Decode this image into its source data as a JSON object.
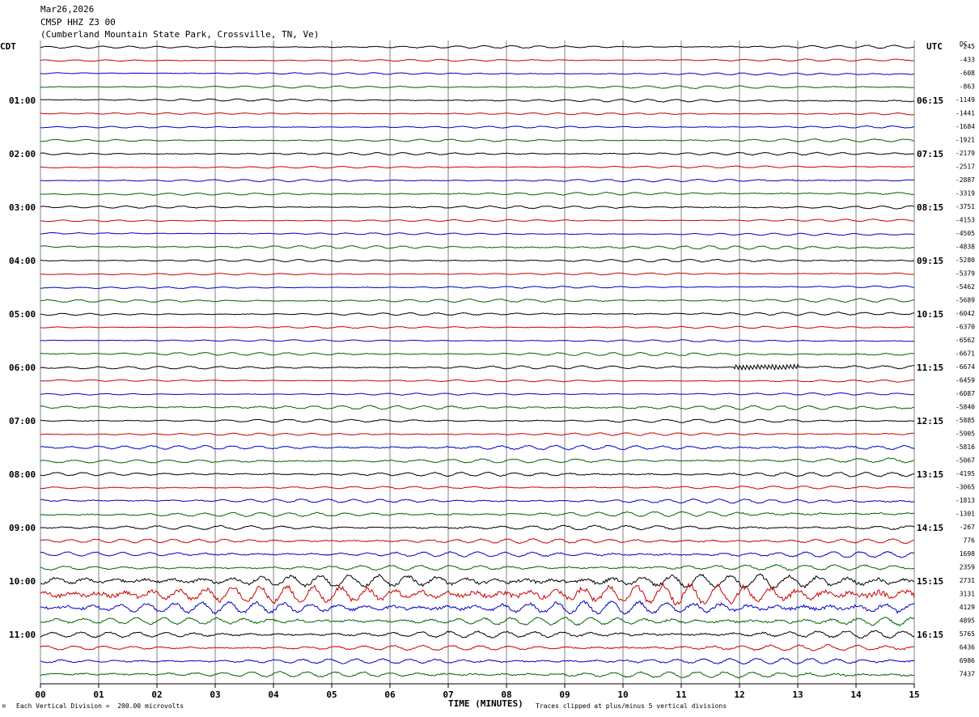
{
  "header": {
    "date": "Mar26,2026",
    "station": "CMSP HHZ Z3 00",
    "location": "(Cumberland Mountain State Park, Crossville, TN, Ve)"
  },
  "left_tz": "CDT",
  "right_tz": "UTC",
  "dc_label": "DC",
  "footer": {
    "division_note": "Each Vertical Division =  200.00 microvolts",
    "clip_note": "Traces clipped at plus/minus 5 vertical divisions",
    "corner_mark": "M"
  },
  "colors": {
    "trace_cycle": [
      "#000000",
      "#cc0000",
      "#0000cc",
      "#006600"
    ],
    "grid": "#808080"
  },
  "chart_data": {
    "type": "line",
    "title": "CMSP HHZ Z3 00",
    "xlabel": "TIME (MINUTES)",
    "ylabel": "",
    "x_range": [
      0,
      15
    ],
    "x_ticks": [
      "00",
      "01",
      "02",
      "03",
      "04",
      "05",
      "06",
      "07",
      "08",
      "09",
      "10",
      "11",
      "12",
      "13",
      "14",
      "15"
    ],
    "left_hour_labels": [
      "01:00",
      "02:00",
      "03:00",
      "04:00",
      "05:00",
      "06:00",
      "07:00",
      "08:00",
      "09:00",
      "10:00",
      "11:00"
    ],
    "right_hour_labels": [
      "06:15",
      "07:15",
      "08:15",
      "09:15",
      "10:15",
      "11:15",
      "12:15",
      "13:15",
      "14:15",
      "15:15",
      "16:15"
    ],
    "dc_offsets": [
      "-245",
      "-433",
      "-608",
      "-863",
      "-1149",
      "-1441",
      "-1684",
      "-1921",
      "-2179",
      "-2517",
      "-2887",
      "-3319",
      "-3751",
      "-4153",
      "-4505",
      "-4838",
      "-5280",
      "-5379",
      "-5462",
      "-5689",
      "-6042",
      "-6370",
      "-6562",
      "-6671",
      "-6674",
      "-6459",
      "-6087",
      "-5840",
      "-5885",
      "-5905",
      "-5816",
      "-5067",
      "-4195",
      "-3065",
      "-1813",
      "-1301",
      "-267",
      "776",
      "1698",
      "2359",
      "2731",
      "3131",
      "4129",
      "4895",
      "5765",
      "6436",
      "6986",
      "7437"
    ],
    "trace_amplitude_divisions": [
      0.2,
      0.15,
      0.15,
      0.2,
      0.2,
      0.15,
      0.15,
      0.2,
      0.2,
      0.15,
      0.2,
      0.2,
      0.2,
      0.15,
      0.15,
      0.25,
      0.2,
      0.15,
      0.15,
      0.25,
      0.2,
      0.15,
      0.15,
      0.25,
      0.25,
      0.15,
      0.15,
      0.3,
      0.25,
      0.2,
      0.35,
      0.3,
      0.3,
      0.2,
      0.3,
      0.35,
      0.35,
      0.35,
      0.4,
      0.4,
      1.0,
      1.5,
      1.0,
      0.6,
      0.5,
      0.4,
      0.4,
      0.45
    ],
    "event": {
      "trace_index": 24,
      "minute_start": 11.9,
      "minute_end": 13.0,
      "amplitude_divisions": 0.35
    },
    "traces_per_hour": 4,
    "minutes_per_trace": 15
  }
}
